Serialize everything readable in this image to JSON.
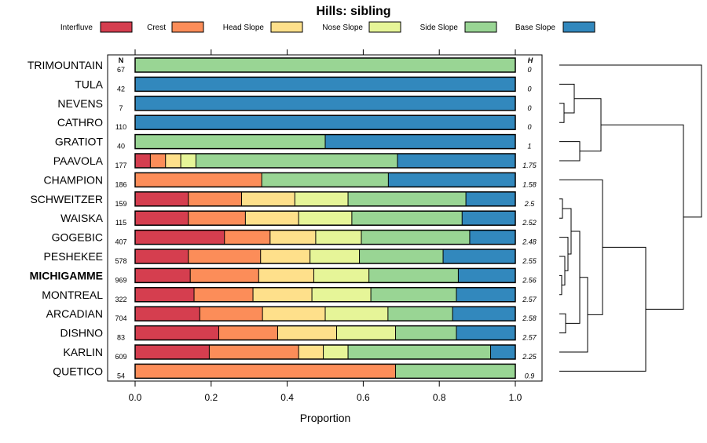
{
  "chart_data": {
    "type": "bar",
    "stacked": true,
    "orientation": "horizontal",
    "title": "Hills: sibling",
    "xlabel": "Proportion",
    "xlim": [
      0,
      1
    ],
    "xticks": [
      "0.0",
      "0.2",
      "0.4",
      "0.6",
      "0.8",
      "1.0"
    ],
    "xtick_values": [
      0,
      0.2,
      0.4,
      0.6,
      0.8,
      1.0
    ],
    "n_header": "N",
    "h_header": "H",
    "highlight": "MICHIGAMME",
    "legend_position": "top",
    "series_names": [
      "Interfluve",
      "Crest",
      "Head Slope",
      "Nose Slope",
      "Side Slope",
      "Base Slope"
    ],
    "colors": [
      "#d53e4f",
      "#fc8d59",
      "#fee08b",
      "#e6f598",
      "#99d594",
      "#3288bd"
    ],
    "rows": [
      {
        "name": "TRIMOUNTAIN",
        "n": "67",
        "h": "0",
        "values": [
          0,
          0,
          0,
          0,
          1.0,
          0
        ]
      },
      {
        "name": "TULA",
        "n": "42",
        "h": "0",
        "values": [
          0,
          0,
          0,
          0,
          0,
          1.0
        ]
      },
      {
        "name": "NEVENS",
        "n": "7",
        "h": "0",
        "values": [
          0,
          0,
          0,
          0,
          0,
          1.0
        ]
      },
      {
        "name": "CATHRO",
        "n": "110",
        "h": "0",
        "values": [
          0,
          0,
          0,
          0,
          0,
          1.0
        ]
      },
      {
        "name": "GRATIOT",
        "n": "40",
        "h": "1",
        "values": [
          0,
          0,
          0,
          0,
          0.5,
          0.5
        ]
      },
      {
        "name": "PAAVOLA",
        "n": "177",
        "h": "1.75",
        "values": [
          0.04,
          0.04,
          0.04,
          0.04,
          0.53,
          0.31
        ]
      },
      {
        "name": "CHAMPION",
        "n": "186",
        "h": "1.58",
        "values": [
          0,
          0.333,
          0,
          0,
          0.333,
          0.334
        ]
      },
      {
        "name": "SCHWEITZER",
        "n": "159",
        "h": "2.5",
        "values": [
          0.14,
          0.14,
          0.14,
          0.14,
          0.31,
          0.13
        ]
      },
      {
        "name": "WAISKA",
        "n": "115",
        "h": "2.52",
        "values": [
          0.14,
          0.15,
          0.14,
          0.14,
          0.29,
          0.14
        ]
      },
      {
        "name": "GOGEBIC",
        "n": "407",
        "h": "2.48",
        "values": [
          0.235,
          0.12,
          0.12,
          0.12,
          0.285,
          0.12
        ]
      },
      {
        "name": "PESHEKEE",
        "n": "578",
        "h": "2.55",
        "values": [
          0.14,
          0.19,
          0.13,
          0.13,
          0.22,
          0.19
        ]
      },
      {
        "name": "MICHIGAMME",
        "n": "969",
        "h": "2.56",
        "values": [
          0.145,
          0.18,
          0.145,
          0.145,
          0.235,
          0.15
        ]
      },
      {
        "name": "MONTREAL",
        "n": "322",
        "h": "2.57",
        "values": [
          0.155,
          0.155,
          0.155,
          0.155,
          0.225,
          0.155
        ]
      },
      {
        "name": "ARCADIAN",
        "n": "704",
        "h": "2.58",
        "values": [
          0.17,
          0.165,
          0.165,
          0.165,
          0.17,
          0.165
        ]
      },
      {
        "name": "DISHNO",
        "n": "83",
        "h": "2.57",
        "values": [
          0.22,
          0.155,
          0.155,
          0.155,
          0.16,
          0.155
        ]
      },
      {
        "name": "KARLIN",
        "n": "609",
        "h": "2.25",
        "values": [
          0.195,
          0.235,
          0.065,
          0.065,
          0.375,
          0.065
        ]
      },
      {
        "name": "QUETICO",
        "n": "54",
        "h": "0.9",
        "values": [
          0,
          0.685,
          0,
          0,
          0.315,
          0
        ]
      }
    ]
  }
}
